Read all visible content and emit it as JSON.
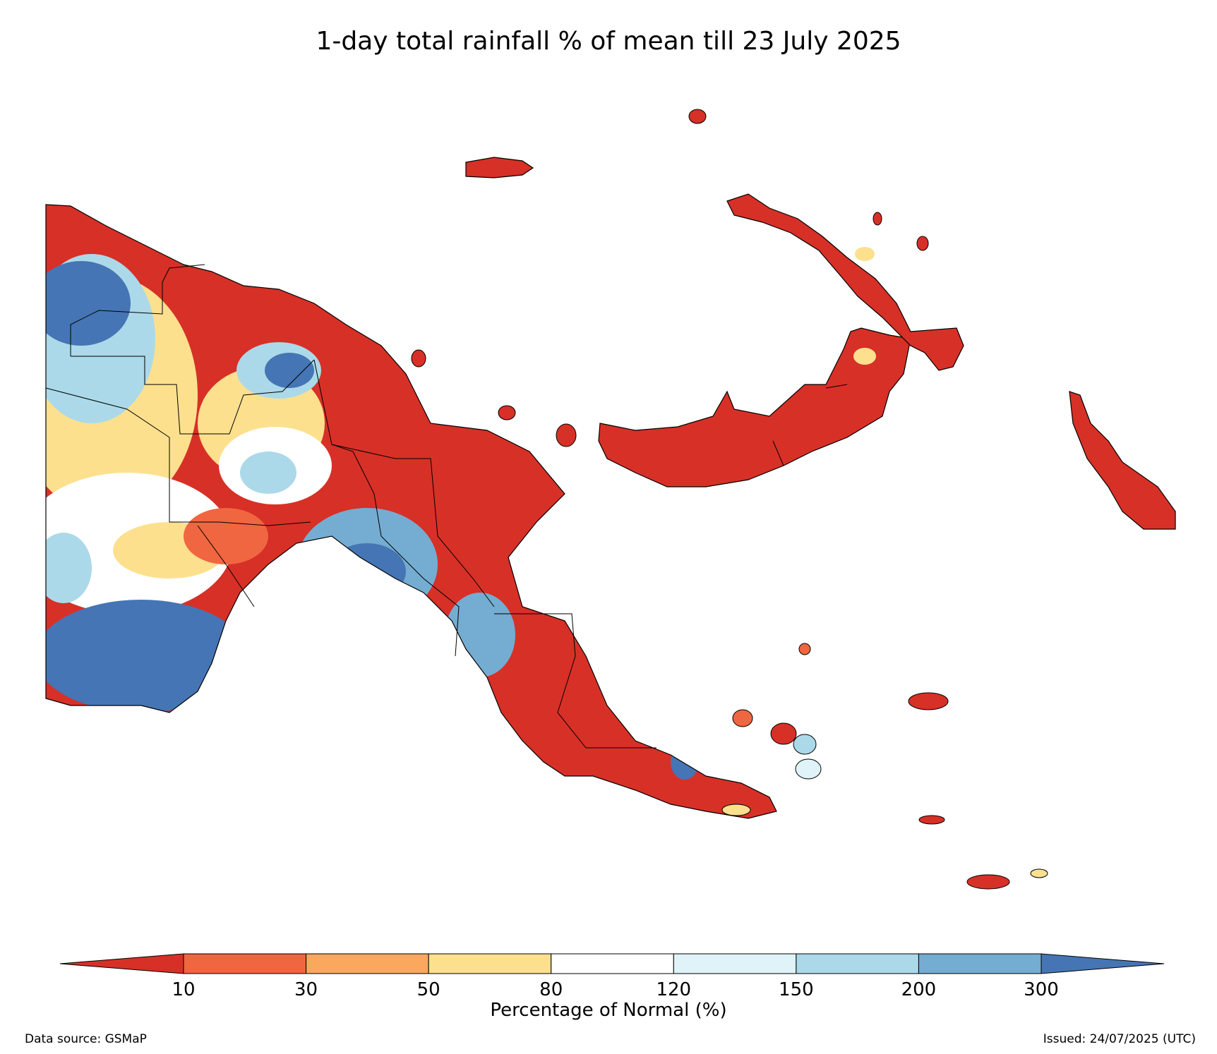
{
  "title": "1-day total rainfall % of mean till 23 July 2025",
  "colorbar": {
    "title": "Percentage of Normal (%)",
    "ticks": [
      "10",
      "30",
      "50",
      "80",
      "120",
      "150",
      "200",
      "300"
    ],
    "colors": [
      "#d73027",
      "#f06640",
      "#f9a85e",
      "#fde08e",
      "#ffffff",
      "#e0f3f8",
      "#abd9e9",
      "#74add1",
      "#4575b4"
    ]
  },
  "footer": {
    "source": "Data source: GSMaP",
    "issued": "Issued: 24/07/2025 (UTC)"
  }
}
